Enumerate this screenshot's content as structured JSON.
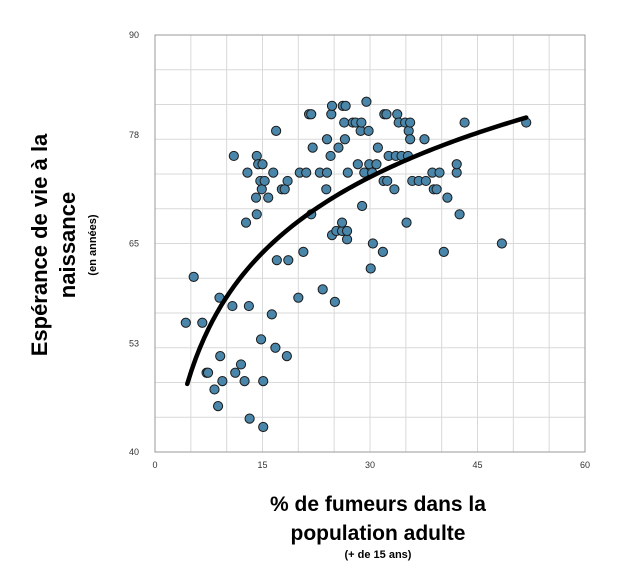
{
  "chart_data": {
    "type": "scatter",
    "title": "",
    "xlim": [
      0,
      60
    ],
    "ylim": [
      40,
      90
    ],
    "x_ticks": [
      0,
      15,
      30,
      45,
      60
    ],
    "y_ticks": [
      40,
      53,
      65,
      78,
      90
    ],
    "grid": true,
    "ylabel": {
      "lines": [
        "Espérance de vie à la",
        "naissance"
      ],
      "sub": "(en années)"
    },
    "xlabel": {
      "lines": [
        "% de fumeurs dans la",
        "population adulte"
      ],
      "sub": "(+ de 15 ans)"
    },
    "colors": {
      "point": "#4a86aa",
      "point_edge": "#1a1a1a",
      "trend": "#000000",
      "grid": "#d9d9d9"
    },
    "series": [
      {
        "type": "scatter",
        "points": [
          [
            4.3,
            55.5
          ],
          [
            5.4,
            61.0
          ],
          [
            6.6,
            55.5
          ],
          [
            7.2,
            49.5
          ],
          [
            7.4,
            49.5
          ],
          [
            8.3,
            47.5
          ],
          [
            8.8,
            45.5
          ],
          [
            9.0,
            58.5
          ],
          [
            9.1,
            51.5
          ],
          [
            9.4,
            48.5
          ],
          [
            10.8,
            57.5
          ],
          [
            11.2,
            49.5
          ],
          [
            11.0,
            75.5
          ],
          [
            12.0,
            50.5
          ],
          [
            12.5,
            48.5
          ],
          [
            12.7,
            67.5
          ],
          [
            12.9,
            73.5
          ],
          [
            13.1,
            57.5
          ],
          [
            13.2,
            44.0
          ],
          [
            14.2,
            68.5
          ],
          [
            14.1,
            70.5
          ],
          [
            14.2,
            75.5
          ],
          [
            14.4,
            74.5
          ],
          [
            14.7,
            72.5
          ],
          [
            14.8,
            53.5
          ],
          [
            14.9,
            71.5
          ],
          [
            15.0,
            74.5
          ],
          [
            15.1,
            48.5
          ],
          [
            15.1,
            43.0
          ],
          [
            15.3,
            72.5
          ],
          [
            15.8,
            70.5
          ],
          [
            16.3,
            56.5
          ],
          [
            16.5,
            73.5
          ],
          [
            16.8,
            52.5
          ],
          [
            16.9,
            78.5
          ],
          [
            17.0,
            63.0
          ],
          [
            17.7,
            71.5
          ],
          [
            18.1,
            71.5
          ],
          [
            18.4,
            51.5
          ],
          [
            18.5,
            72.5
          ],
          [
            18.6,
            63.0
          ],
          [
            20.0,
            58.5
          ],
          [
            20.2,
            73.5
          ],
          [
            20.7,
            64.0
          ],
          [
            21.1,
            73.5
          ],
          [
            21.5,
            80.5
          ],
          [
            21.8,
            80.5
          ],
          [
            21.8,
            68.5
          ],
          [
            22.0,
            76.5
          ],
          [
            23.0,
            73.5
          ],
          [
            23.4,
            59.5
          ],
          [
            23.9,
            71.5
          ],
          [
            24.0,
            77.5
          ],
          [
            24.0,
            73.5
          ],
          [
            24.5,
            75.5
          ],
          [
            24.7,
            66.0
          ],
          [
            24.6,
            80.5
          ],
          [
            24.7,
            81.5
          ],
          [
            25.1,
            58.0
          ],
          [
            25.3,
            66.5
          ],
          [
            25.6,
            76.5
          ],
          [
            26.1,
            66.5
          ],
          [
            26.1,
            67.5
          ],
          [
            26.2,
            81.5
          ],
          [
            26.4,
            79.5
          ],
          [
            26.5,
            77.5
          ],
          [
            26.6,
            81.5
          ],
          [
            26.8,
            65.5
          ],
          [
            26.8,
            66.5
          ],
          [
            26.9,
            73.5
          ],
          [
            27.6,
            79.5
          ],
          [
            28.0,
            79.5
          ],
          [
            28.3,
            74.5
          ],
          [
            28.7,
            78.5
          ],
          [
            28.9,
            69.5
          ],
          [
            28.8,
            79.5
          ],
          [
            29.2,
            73.5
          ],
          [
            29.5,
            82.0
          ],
          [
            29.8,
            78.5
          ],
          [
            29.9,
            74.5
          ],
          [
            30.1,
            62.0
          ],
          [
            30.3,
            73.5
          ],
          [
            30.4,
            65.0
          ],
          [
            30.9,
            74.5
          ],
          [
            31.1,
            76.5
          ],
          [
            31.8,
            64.0
          ],
          [
            31.9,
            72.5
          ],
          [
            32.0,
            80.5
          ],
          [
            32.3,
            80.5
          ],
          [
            32.4,
            72.5
          ],
          [
            32.6,
            75.5
          ],
          [
            33.4,
            71.5
          ],
          [
            33.6,
            75.5
          ],
          [
            33.8,
            80.5
          ],
          [
            34.0,
            79.5
          ],
          [
            34.4,
            75.5
          ],
          [
            34.9,
            79.5
          ],
          [
            35.1,
            67.5
          ],
          [
            35.3,
            75.5
          ],
          [
            35.4,
            78.5
          ],
          [
            35.6,
            79.5
          ],
          [
            35.6,
            77.5
          ],
          [
            35.9,
            72.5
          ],
          [
            36.8,
            72.5
          ],
          [
            37.6,
            77.5
          ],
          [
            37.8,
            72.5
          ],
          [
            38.7,
            73.5
          ],
          [
            38.9,
            71.5
          ],
          [
            39.3,
            71.5
          ],
          [
            39.7,
            73.5
          ],
          [
            40.3,
            64.0
          ],
          [
            40.8,
            70.5
          ],
          [
            42.1,
            73.5
          ],
          [
            42.1,
            74.5
          ],
          [
            42.5,
            68.5
          ],
          [
            43.2,
            79.5
          ],
          [
            48.4,
            65.0
          ],
          [
            51.8,
            79.5
          ]
        ]
      },
      {
        "type": "trend",
        "x_range": [
          4.5,
          51.8
        ],
        "curve": "logarithmic",
        "approx_points": [
          [
            4.5,
            48.5
          ],
          [
            8.0,
            55.0
          ],
          [
            15.0,
            64.0
          ],
          [
            20.0,
            68.0
          ],
          [
            30.0,
            73.0
          ],
          [
            40.0,
            76.7
          ],
          [
            51.8,
            80.0
          ]
        ]
      }
    ]
  }
}
